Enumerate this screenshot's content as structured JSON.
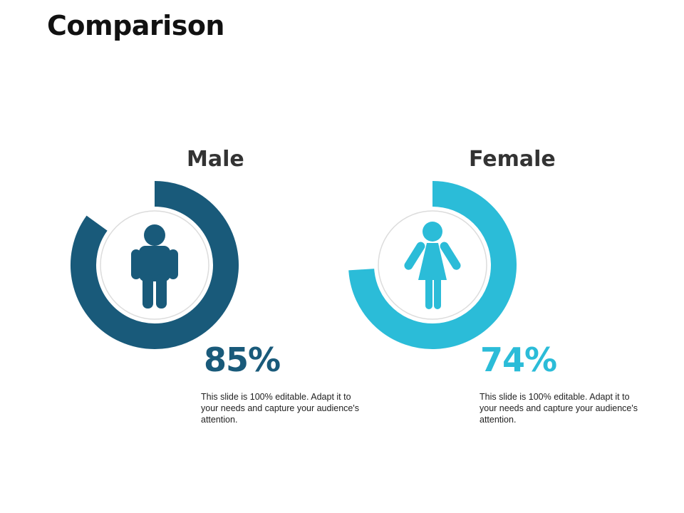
{
  "slide": {
    "title": "Comparison"
  },
  "colors": {
    "male": "#195a7a",
    "female": "#2bbcd8",
    "inner_ring": "#dcdcdc"
  },
  "chart_data": [
    {
      "type": "pie",
      "variant": "donut",
      "title": "Male",
      "value_label": "85%",
      "values": [
        85,
        15
      ],
      "unit": "%",
      "icon": "male-person-icon",
      "color": "#195a7a",
      "description": "This slide is 100% editable. Adapt it to your needs and capture your audience's attention."
    },
    {
      "type": "pie",
      "variant": "donut",
      "title": "Female",
      "value_label": "74%",
      "values": [
        74,
        26
      ],
      "unit": "%",
      "icon": "female-person-icon",
      "color": "#2bbcd8",
      "description": "This slide is 100% editable. Adapt it to your needs and capture your audience's attention."
    }
  ]
}
